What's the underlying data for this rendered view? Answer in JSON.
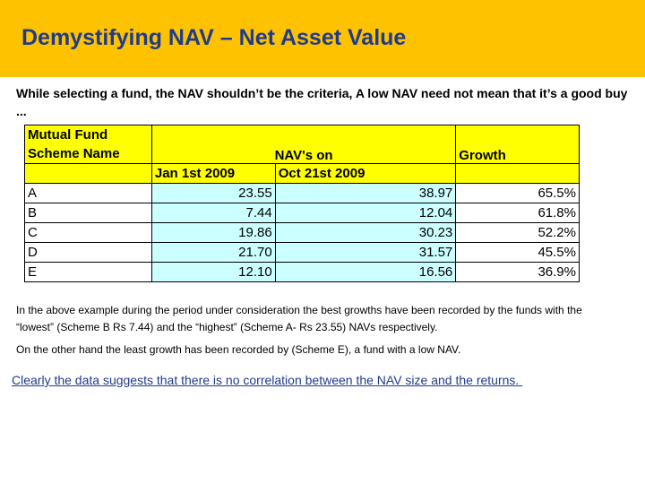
{
  "slide": {
    "title": "Demystifying NAV – Net Asset Value",
    "subtitle": "While selecting a fund, the NAV shouldn’t be the criteria,  A low NAV need not mean that it’s a good buy ...",
    "paragraph1": "In the above example during the period under consideration the best growths  have been recorded by the funds with the “lowest” (Scheme B Rs 7.44) and the “highest”  (Scheme A- Rs 23.55) NAVs respectively.",
    "paragraph2": "On the other hand the least growth has been recorded by (Scheme E), a  fund with a low NAV.",
    "conclusion": "Clearly the data suggests that there is no correlation between the NAV size and the returns. "
  },
  "colors": {
    "title_bar": "#FFC200",
    "title_text": "#1F3B8C",
    "header_fill": "#FFFF00",
    "data_fill": "#CCFFFF"
  },
  "table": {
    "header_scheme_line1": "Mutual Fund",
    "header_scheme_line2": "Scheme Name",
    "header_nav": "NAV's on",
    "header_growth": "Growth",
    "header_date1": "Jan 1st 2009",
    "header_date2": "Oct 21st 2009",
    "rows": [
      {
        "scheme": "A",
        "nav_jan": "23.55",
        "nav_oct": "38.97",
        "growth": "65.5%"
      },
      {
        "scheme": "B",
        "nav_jan": "7.44",
        "nav_oct": "12.04",
        "growth": "61.8%"
      },
      {
        "scheme": "C",
        "nav_jan": "19.86",
        "nav_oct": "30.23",
        "growth": "52.2%"
      },
      {
        "scheme": "D",
        "nav_jan": "21.70",
        "nav_oct": "31.57",
        "growth": "45.5%"
      },
      {
        "scheme": "E",
        "nav_jan": "12.10",
        "nav_oct": "16.56",
        "growth": "36.9%"
      }
    ]
  }
}
